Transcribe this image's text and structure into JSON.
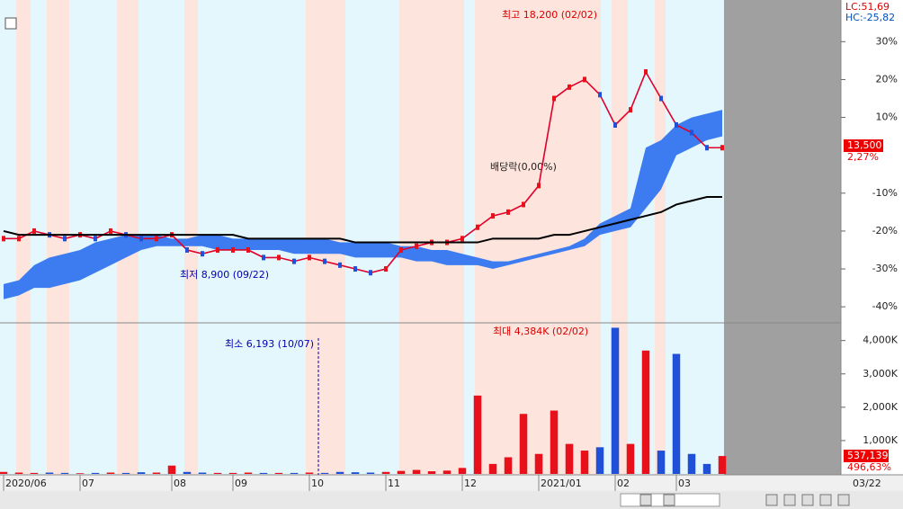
{
  "chart_data": {
    "type": "line",
    "categories": [
      "2020/06",
      null,
      null,
      null,
      null,
      "07",
      null,
      null,
      null,
      null,
      null,
      "08",
      null,
      null,
      null,
      "09",
      null,
      null,
      null,
      null,
      "10",
      null,
      null,
      null,
      null,
      "11",
      null,
      null,
      null,
      null,
      "12",
      null,
      null,
      null,
      null,
      "2021/01",
      null,
      null,
      null,
      null,
      "02",
      null,
      null,
      null,
      "03",
      null,
      null,
      null
    ],
    "ylim": [
      -44,
      41
    ],
    "yticks": [
      {
        "value": 30,
        "label": "30%"
      },
      {
        "value": 20,
        "label": "20%"
      },
      {
        "value": 10,
        "label": "10%"
      },
      {
        "value": -10,
        "label": "-10%"
      },
      {
        "value": -20,
        "label": "-20%"
      },
      {
        "value": -30,
        "label": "-30%"
      },
      {
        "value": -40,
        "label": "-40%"
      }
    ],
    "series": [
      {
        "color": "#e0002a",
        "values": [
          -22,
          -22,
          -20,
          -21,
          -22,
          -21,
          -22,
          -20,
          -21,
          -22,
          -22,
          -21,
          -25,
          -26,
          -25,
          -25,
          -25,
          -27,
          -27,
          -28,
          -27,
          -28,
          -29,
          -30,
          -31,
          -30,
          -25,
          -24,
          -23,
          -23,
          -22,
          -19,
          -16,
          -15,
          -13,
          -8,
          15,
          18,
          20,
          16,
          8,
          12,
          22,
          15,
          8,
          6,
          2,
          2
        ]
      },
      {
        "color": "#000000",
        "values": [
          -20,
          -21,
          -21,
          -21,
          -21,
          -21,
          -21,
          -21,
          -21,
          -21,
          -21,
          -21,
          -21,
          -21,
          -21,
          -21,
          -22,
          -22,
          -22,
          -22,
          -22,
          -22,
          -22,
          -23,
          -23,
          -23,
          -23,
          -23,
          -23,
          -23,
          -23,
          -23,
          -22,
          -22,
          -22,
          -22,
          -21,
          -21,
          -20,
          -19,
          -18,
          -17,
          -16,
          -15,
          -13,
          -12,
          -11,
          -11
        ]
      }
    ],
    "cloud": {
      "color": "#3d7cf0",
      "upper": [
        -34,
        -33,
        -29,
        -27,
        -26,
        -25,
        -23,
        -22,
        -21,
        -21,
        -21,
        -22,
        -22,
        -21,
        -21,
        -22,
        -22,
        -22,
        -22,
        -22,
        -22,
        -22,
        -23,
        -23,
        -23,
        -23,
        -24,
        -24,
        -25,
        -25,
        -26,
        -27,
        -28,
        -28,
        -27,
        -26,
        -25,
        -24,
        -22,
        -18,
        -16,
        -14,
        2,
        4,
        8,
        10,
        11,
        12
      ],
      "lower": [
        -38,
        -37,
        -35,
        -35,
        -34,
        -33,
        -31,
        -29,
        -27,
        -25,
        -24,
        -24,
        -24,
        -24,
        -25,
        -25,
        -25,
        -25,
        -25,
        -26,
        -26,
        -26,
        -26,
        -27,
        -27,
        -27,
        -27,
        -28,
        -28,
        -29,
        -29,
        -29,
        -30,
        -29,
        -28,
        -27,
        -26,
        -25,
        -24,
        -21,
        -20,
        -19,
        -14,
        -9,
        0,
        2,
        4,
        5
      ]
    },
    "annotations": [
      "최고 18,200 (02/02)",
      "배당락(0,00%)",
      "최저 8,900 (09/22)"
    ],
    "indicator_labels": [
      "LC:51,69",
      "HC:-25,82"
    ],
    "last_price": "13,500",
    "last_change": "2,27%",
    "volume": {
      "ylim": [
        0,
        4450
      ],
      "yticks": [
        {
          "value": 4000,
          "label": "4,000K"
        },
        {
          "value": 3000,
          "label": "3,000K"
        },
        {
          "value": 2000,
          "label": "2,000K"
        },
        {
          "value": 1000,
          "label": "1,000K"
        }
      ],
      "values": [
        60,
        40,
        30,
        40,
        30,
        20,
        30,
        40,
        30,
        50,
        40,
        250,
        60,
        40,
        30,
        30,
        40,
        30,
        30,
        30,
        40,
        30,
        60,
        50,
        40,
        60,
        90,
        120,
        80,
        100,
        180,
        2350,
        300,
        500,
        1800,
        600,
        1900,
        900,
        700,
        800,
        4384,
        900,
        3700,
        700,
        3600,
        600,
        300,
        537
      ],
      "annotations": [
        "최대 4,384K (02/02)",
        "최소 6,193 (10/07)"
      ],
      "last_value": "537,139",
      "last_ratio": "496,63%"
    },
    "end_date": "03/22"
  }
}
